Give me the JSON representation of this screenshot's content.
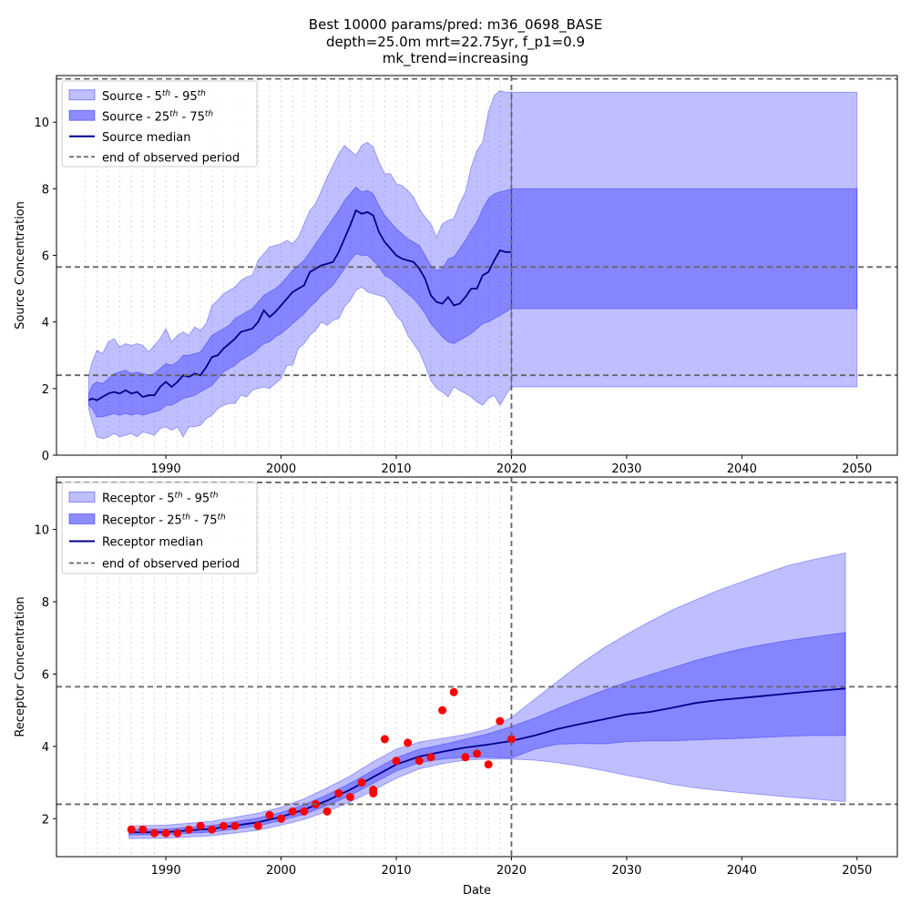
{
  "chart_data": [
    {
      "type": "area",
      "title_lines": [
        "Best 10000 params/pred: m36_0698_BASE",
        "depth=25.0m mrt=22.75yr, f_p1=0.9",
        "mk_trend=increasing"
      ],
      "xlabel": "",
      "ylabel": "Source Concentration",
      "xlim": [
        1980.5,
        2053.5
      ],
      "ylim": [
        0,
        11.4
      ],
      "xticks": [
        1990,
        2000,
        2010,
        2020,
        2030,
        2040,
        2050
      ],
      "yticks": [
        0,
        2,
        4,
        6,
        8,
        10
      ],
      "grid": false,
      "legend_position": "upper-left",
      "legend": [
        {
          "kind": "patch",
          "label_main": "Source - 5",
          "sup1": "th",
          "label_mid": " - 95",
          "sup2": "th",
          "color": "#0000ff",
          "opacity": 0.25
        },
        {
          "kind": "patch",
          "label_main": "Source - 25",
          "sup1": "th",
          "label_mid": " - 75",
          "sup2": "th",
          "color": "#0000ff",
          "opacity": 0.45
        },
        {
          "kind": "line",
          "label_main": "Source median",
          "color": "#00008b"
        },
        {
          "kind": "dashed",
          "label_main": "end of observed period",
          "color": "#666666"
        }
      ],
      "end_observed_x": 2020,
      "hlines": [
        11.3,
        5.65,
        2.4
      ],
      "x": [
        1983.3,
        1983.6,
        1984.0,
        1984.5,
        1985.0,
        1985.5,
        1986.0,
        1986.5,
        1987.0,
        1987.5,
        1988.0,
        1988.5,
        1989.0,
        1989.5,
        1990.0,
        1990.5,
        1991.0,
        1991.5,
        1992.0,
        1992.5,
        1993.0,
        1993.5,
        1994.0,
        1994.5,
        1995.0,
        1995.5,
        1996.0,
        1996.5,
        1997.0,
        1997.5,
        1998.0,
        1998.5,
        1999.0,
        1999.5,
        2000.0,
        2000.5,
        2001.0,
        2001.5,
        2002.0,
        2002.5,
        2003.0,
        2003.5,
        2004.0,
        2004.5,
        2005.0,
        2005.5,
        2006.0,
        2006.5,
        2007.0,
        2007.5,
        2008.0,
        2008.5,
        2009.0,
        2009.5,
        2010.0,
        2010.5,
        2011.0,
        2011.5,
        2012.0,
        2012.5,
        2013.0,
        2013.5,
        2014.0,
        2014.5,
        2015.0,
        2015.5,
        2016.0,
        2016.5,
        2017.0,
        2017.5,
        2018.0,
        2018.5,
        2019.0,
        2019.5,
        2020.0
      ],
      "median": [
        1.65,
        1.7,
        1.65,
        1.75,
        1.85,
        1.9,
        1.85,
        1.95,
        1.85,
        1.9,
        1.75,
        1.8,
        1.8,
        2.05,
        2.2,
        2.05,
        2.2,
        2.4,
        2.35,
        2.45,
        2.4,
        2.65,
        2.95,
        3.0,
        3.2,
        3.35,
        3.5,
        3.7,
        3.75,
        3.8,
        4.0,
        4.35,
        4.15,
        4.3,
        4.5,
        4.7,
        4.9,
        5.0,
        5.1,
        5.5,
        5.6,
        5.7,
        5.75,
        5.8,
        6.1,
        6.5,
        6.9,
        7.35,
        7.25,
        7.3,
        7.2,
        6.7,
        6.4,
        6.2,
        6.0,
        5.9,
        5.85,
        5.8,
        5.6,
        5.3,
        4.8,
        4.6,
        4.55,
        4.75,
        4.5,
        4.55,
        4.75,
        5.0,
        5.0,
        5.4,
        5.5,
        5.85,
        6.15,
        6.1,
        6.1
      ],
      "p25": [
        1.5,
        1.4,
        1.15,
        1.15,
        1.2,
        1.25,
        1.2,
        1.25,
        1.2,
        1.25,
        1.2,
        1.25,
        1.3,
        1.35,
        1.5,
        1.5,
        1.6,
        1.7,
        1.75,
        1.8,
        1.9,
        2.0,
        2.1,
        2.3,
        2.5,
        2.6,
        2.7,
        2.85,
        2.95,
        3.05,
        3.2,
        3.35,
        3.4,
        3.55,
        3.65,
        3.8,
        3.95,
        4.1,
        4.25,
        4.45,
        4.6,
        4.8,
        4.95,
        5.1,
        5.35,
        5.6,
        5.85,
        6.05,
        6.0,
        6.0,
        5.85,
        5.65,
        5.4,
        5.3,
        5.15,
        5.0,
        4.85,
        4.7,
        4.5,
        4.25,
        3.95,
        3.75,
        3.55,
        3.4,
        3.35,
        3.45,
        3.55,
        3.65,
        3.8,
        3.95,
        4.0,
        4.1,
        4.2,
        4.3,
        4.4
      ],
      "p75": [
        1.85,
        2.1,
        2.2,
        2.15,
        2.3,
        2.45,
        2.5,
        2.55,
        2.45,
        2.5,
        2.45,
        2.4,
        2.45,
        2.6,
        2.75,
        2.7,
        2.8,
        3.0,
        3.0,
        3.05,
        3.1,
        3.35,
        3.6,
        3.7,
        3.8,
        3.9,
        4.1,
        4.2,
        4.3,
        4.4,
        4.6,
        4.8,
        4.9,
        5.0,
        5.15,
        5.35,
        5.55,
        5.7,
        5.85,
        6.1,
        6.35,
        6.6,
        6.85,
        7.1,
        7.35,
        7.65,
        7.85,
        8.05,
        7.9,
        7.95,
        7.85,
        7.5,
        7.2,
        7.0,
        6.8,
        6.65,
        6.5,
        6.4,
        6.3,
        6.0,
        5.7,
        5.55,
        5.6,
        5.9,
        5.95,
        6.2,
        6.45,
        6.75,
        7.0,
        7.4,
        7.7,
        7.85,
        7.9,
        7.95,
        8.0
      ],
      "p5": [
        1.4,
        1.0,
        0.55,
        0.5,
        0.55,
        0.65,
        0.55,
        0.6,
        0.65,
        0.55,
        0.7,
        0.65,
        0.6,
        0.8,
        0.85,
        0.75,
        0.85,
        0.55,
        0.85,
        0.85,
        0.9,
        1.1,
        1.2,
        1.4,
        1.5,
        1.55,
        1.55,
        1.8,
        1.75,
        1.95,
        2.0,
        2.05,
        2.0,
        2.15,
        2.3,
        2.7,
        2.7,
        3.2,
        3.35,
        3.6,
        3.75,
        4.0,
        3.9,
        4.05,
        4.1,
        4.45,
        4.65,
        4.95,
        5.05,
        4.9,
        4.85,
        4.8,
        4.75,
        4.5,
        4.2,
        4.0,
        3.6,
        3.35,
        3.1,
        2.7,
        2.25,
        2.0,
        1.9,
        1.75,
        2.05,
        1.95,
        1.85,
        1.75,
        1.6,
        1.5,
        1.7,
        1.8,
        1.5,
        1.8,
        2.05
      ],
      "p95": [
        2.4,
        2.8,
        3.15,
        3.05,
        3.4,
        3.5,
        3.25,
        3.35,
        3.3,
        3.35,
        3.3,
        3.1,
        3.3,
        3.5,
        3.8,
        3.4,
        3.6,
        3.7,
        3.6,
        3.85,
        3.75,
        3.95,
        4.5,
        4.65,
        4.85,
        4.95,
        5.05,
        5.25,
        5.35,
        5.4,
        5.85,
        6.05,
        6.25,
        6.3,
        6.35,
        6.45,
        6.35,
        6.55,
        6.95,
        7.35,
        7.55,
        7.95,
        8.35,
        8.7,
        9.05,
        9.3,
        9.15,
        9.0,
        9.3,
        9.4,
        9.25,
        8.8,
        8.45,
        8.45,
        8.15,
        8.1,
        7.95,
        7.75,
        7.4,
        7.15,
        6.95,
        6.55,
        6.95,
        7.05,
        7.1,
        7.55,
        7.9,
        8.65,
        9.15,
        9.4,
        10.3,
        10.8,
        10.95,
        10.9,
        10.9
      ],
      "forecast_x": [
        2020,
        2050
      ],
      "forecast_p5": 2.05,
      "forecast_p25": 4.4,
      "forecast_p75": 8.0,
      "forecast_p95": 10.9
    },
    {
      "type": "area",
      "xlabel": "Date",
      "ylabel": "Receptor Concentration",
      "xlim": [
        1980.5,
        2053.5
      ],
      "ylim": [
        0.95,
        11.45
      ],
      "xticks": [
        1990,
        2000,
        2010,
        2020,
        2030,
        2040,
        2050
      ],
      "yticks": [
        2,
        4,
        6,
        8,
        10
      ],
      "grid": false,
      "legend_position": "upper-left",
      "legend": [
        {
          "kind": "patch",
          "label_main": "Receptor - 5",
          "sup1": "th",
          "label_mid": " - 95",
          "sup2": "th",
          "color": "#0000ff",
          "opacity": 0.25
        },
        {
          "kind": "patch",
          "label_main": "Receptor - 25",
          "sup1": "th",
          "label_mid": " - 75",
          "sup2": "th",
          "color": "#0000ff",
          "opacity": 0.45
        },
        {
          "kind": "line",
          "label_main": "Receptor median",
          "color": "#00008b"
        },
        {
          "kind": "dashed",
          "label_main": "end of observed period",
          "color": "#666666"
        }
      ],
      "end_observed_x": 2020,
      "hlines": [
        11.3,
        5.65,
        2.4
      ],
      "x": [
        1986.8,
        1990,
        1994,
        1998,
        2000,
        2002,
        2004,
        2006,
        2008,
        2010,
        2012,
        2014,
        2016,
        2018,
        2020,
        2022,
        2024,
        2026,
        2028,
        2030,
        2032,
        2034,
        2036,
        2038,
        2040,
        2042,
        2044,
        2046,
        2049
      ],
      "median": [
        1.62,
        1.63,
        1.72,
        1.9,
        2.05,
        2.25,
        2.5,
        2.8,
        3.15,
        3.5,
        3.72,
        3.85,
        3.97,
        4.05,
        4.15,
        4.3,
        4.48,
        4.62,
        4.75,
        4.88,
        4.95,
        5.07,
        5.2,
        5.28,
        5.34,
        5.4,
        5.46,
        5.52,
        5.6
      ],
      "p25": [
        1.55,
        1.56,
        1.63,
        1.8,
        1.95,
        2.12,
        2.36,
        2.64,
        2.98,
        3.32,
        3.55,
        3.65,
        3.7,
        3.7,
        3.68,
        3.92,
        4.06,
        4.08,
        4.07,
        4.13,
        4.15,
        4.15,
        4.18,
        4.2,
        4.22,
        4.25,
        4.28,
        4.3,
        4.3
      ],
      "p75": [
        1.7,
        1.71,
        1.81,
        2.02,
        2.17,
        2.39,
        2.66,
        2.98,
        3.34,
        3.69,
        3.92,
        4.05,
        4.2,
        4.35,
        4.55,
        4.78,
        5.05,
        5.3,
        5.55,
        5.78,
        5.98,
        6.18,
        6.38,
        6.55,
        6.7,
        6.82,
        6.93,
        7.02,
        7.15
      ],
      "p5": [
        1.45,
        1.46,
        1.53,
        1.68,
        1.82,
        1.98,
        2.2,
        2.46,
        2.78,
        3.12,
        3.38,
        3.52,
        3.62,
        3.65,
        3.65,
        3.62,
        3.55,
        3.45,
        3.33,
        3.2,
        3.08,
        2.95,
        2.85,
        2.78,
        2.72,
        2.66,
        2.6,
        2.55,
        2.47
      ],
      "p95": [
        1.8,
        1.82,
        1.93,
        2.15,
        2.32,
        2.55,
        2.85,
        3.18,
        3.58,
        3.92,
        4.12,
        4.22,
        4.33,
        4.48,
        4.8,
        5.3,
        5.8,
        6.28,
        6.72,
        7.1,
        7.45,
        7.78,
        8.05,
        8.32,
        8.55,
        8.78,
        9.0,
        9.15,
        9.35
      ],
      "observations": {
        "color": "#ff0000",
        "x": [
          1987,
          1988,
          1989,
          1990,
          1991,
          1992,
          1993,
          1994,
          1995,
          1996,
          1998,
          1999,
          2000,
          2001,
          2002,
          2003,
          2004,
          2005,
          2006,
          2007,
          2008,
          2008,
          2009,
          2010,
          2011,
          2012,
          2013,
          2014,
          2015,
          2016,
          2017,
          2018,
          2019,
          2020
        ],
        "y": [
          1.7,
          1.7,
          1.6,
          1.6,
          1.6,
          1.7,
          1.8,
          1.7,
          1.8,
          1.8,
          1.8,
          2.1,
          2.0,
          2.2,
          2.2,
          2.4,
          2.2,
          2.7,
          2.6,
          3.0,
          2.7,
          2.8,
          4.2,
          3.6,
          4.1,
          3.6,
          3.7,
          5.0,
          5.5,
          3.7,
          3.8,
          3.5,
          4.7,
          4.2
        ]
      }
    }
  ]
}
